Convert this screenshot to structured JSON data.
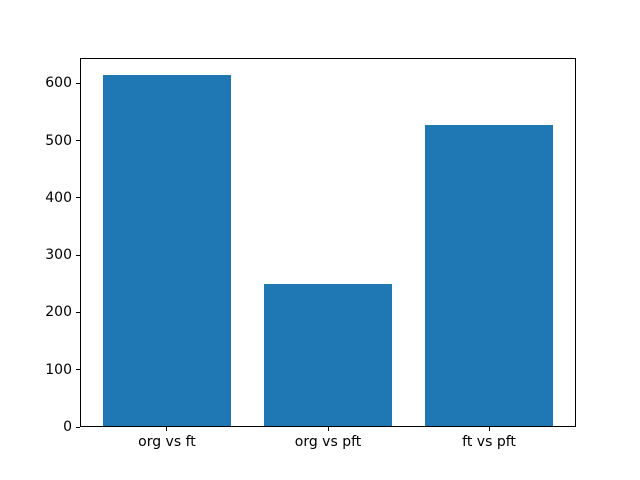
{
  "chart_data": {
    "type": "bar",
    "categories": [
      "org vs ft",
      "org vs pft",
      "ft vs pft"
    ],
    "values": [
      613,
      247,
      525
    ],
    "title": "",
    "xlabel": "",
    "ylabel": "",
    "ylim": [
      0,
      644
    ],
    "xlim": [
      -0.54,
      2.54
    ],
    "yticks": [
      0,
      100,
      200,
      300,
      400,
      500,
      600
    ],
    "bar_color": "#1f77b4",
    "bar_width_fraction": 0.8,
    "grid": false,
    "legend": null,
    "background_color": "#ffffff",
    "spine_color": "#000000"
  }
}
